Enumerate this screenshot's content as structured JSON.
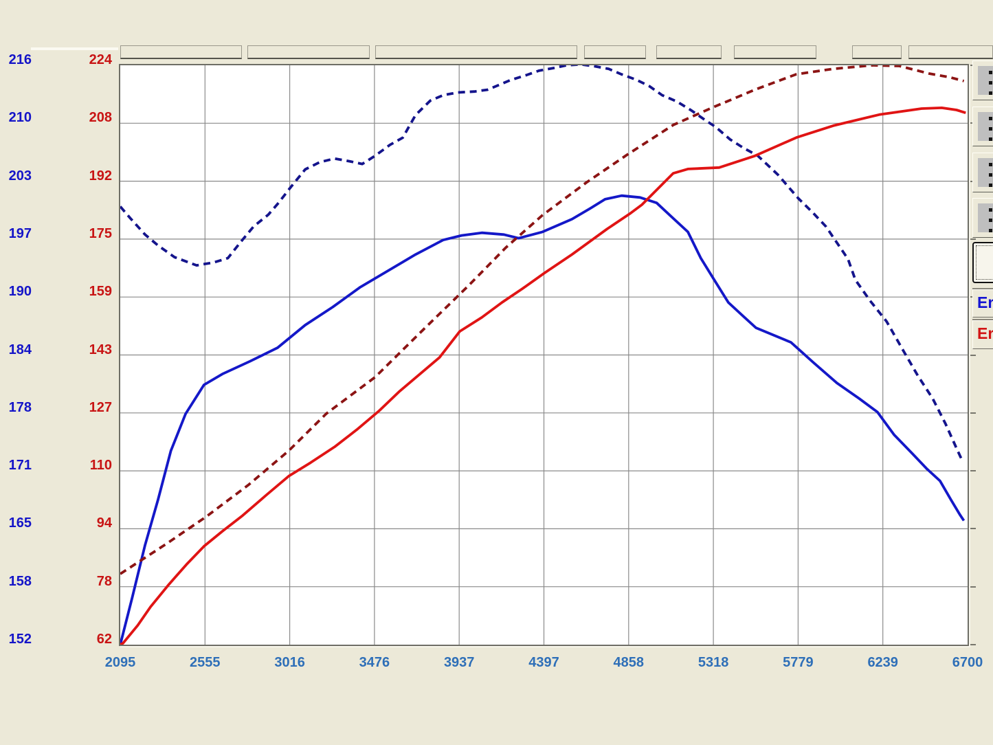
{
  "app": {
    "background": "#ece9d8"
  },
  "right_panel": {
    "icon_buttons": [
      {
        "icon": "mini-graph-icon"
      },
      {
        "icon": "mini-graph-icon"
      },
      {
        "icon": "mini-graph-icon"
      },
      {
        "icon": "mini-graph-icon"
      }
    ],
    "focused_button": {
      "state": "focused"
    },
    "error_buttons": [
      {
        "label": "Er",
        "color": "#1414d2"
      },
      {
        "label": "Er",
        "color": "#d21414"
      }
    ]
  },
  "chart_data": {
    "type": "line",
    "title": "",
    "xlabel": "",
    "ylabel_left_blue": "",
    "ylabel_left_red": "",
    "grid": true,
    "legend": "none",
    "x_axis": {
      "range": [
        2095,
        6700
      ],
      "ticks": [
        2095,
        2555,
        3016,
        3476,
        3937,
        4397,
        4858,
        5318,
        5779,
        6239,
        6700
      ],
      "tick_color": "#2e6fb8"
    },
    "y_axis_blue": {
      "range": [
        152,
        216
      ],
      "ticks_top_to_bottom": [
        216,
        210,
        203,
        197,
        190,
        184,
        178,
        171,
        165,
        158,
        152
      ],
      "tick_color": "#1414c8"
    },
    "y_axis_red": {
      "range": [
        62,
        224
      ],
      "ticks_top_to_bottom": [
        224,
        208,
        192,
        175,
        159,
        143,
        127,
        110,
        94,
        78,
        62
      ],
      "tick_color": "#c81414"
    },
    "series": [
      {
        "name": "dashed-blue",
        "axis": "blue",
        "style": "dashed",
        "color": "#14148c",
        "points": [
          [
            2095,
            200.4
          ],
          [
            2150,
            199.1
          ],
          [
            2230,
            197.3
          ],
          [
            2300,
            196.1
          ],
          [
            2390,
            194.8
          ],
          [
            2510,
            193.9
          ],
          [
            2600,
            194.2
          ],
          [
            2680,
            194.7
          ],
          [
            2750,
            196.5
          ],
          [
            2820,
            198.2
          ],
          [
            2900,
            199.5
          ],
          [
            2955,
            200.8
          ],
          [
            3020,
            202.5
          ],
          [
            3100,
            204.5
          ],
          [
            3180,
            205.3
          ],
          [
            3260,
            205.7
          ],
          [
            3340,
            205.4
          ],
          [
            3410,
            205.1
          ],
          [
            3480,
            206.0
          ],
          [
            3560,
            207.2
          ],
          [
            3630,
            208.0
          ],
          [
            3700,
            210.5
          ],
          [
            3780,
            212.1
          ],
          [
            3850,
            212.7
          ],
          [
            3930,
            213.0
          ],
          [
            4020,
            213.1
          ],
          [
            4090,
            213.3
          ],
          [
            4150,
            213.8
          ],
          [
            4220,
            214.4
          ],
          [
            4300,
            214.9
          ],
          [
            4370,
            215.4
          ],
          [
            4450,
            215.7
          ],
          [
            4520,
            216.0
          ],
          [
            4600,
            216.1
          ],
          [
            4670,
            215.9
          ],
          [
            4750,
            215.6
          ],
          [
            4820,
            215.0
          ],
          [
            4900,
            214.4
          ],
          [
            4970,
            213.7
          ],
          [
            5040,
            212.7
          ],
          [
            5120,
            212.0
          ],
          [
            5200,
            211.0
          ],
          [
            5270,
            210.0
          ],
          [
            5330,
            209.2
          ],
          [
            5410,
            207.8
          ],
          [
            5480,
            206.9
          ],
          [
            5560,
            206.0
          ],
          [
            5670,
            203.9
          ],
          [
            5780,
            201.3
          ],
          [
            5860,
            199.7
          ],
          [
            5930,
            198.2
          ],
          [
            6050,
            194.6
          ],
          [
            6090,
            192.3
          ],
          [
            6170,
            190.0
          ],
          [
            6260,
            187.7
          ],
          [
            6350,
            184.5
          ],
          [
            6430,
            181.7
          ],
          [
            6510,
            179.2
          ],
          [
            6580,
            176.4
          ],
          [
            6640,
            173.7
          ],
          [
            6665,
            172.6
          ]
        ]
      },
      {
        "name": "solid-blue",
        "axis": "blue",
        "style": "solid",
        "color": "#1418c8",
        "points": [
          [
            2095,
            152.0
          ],
          [
            2160,
            157.2
          ],
          [
            2230,
            163.0
          ],
          [
            2300,
            168.0
          ],
          [
            2370,
            173.4
          ],
          [
            2450,
            177.5
          ],
          [
            2550,
            180.7
          ],
          [
            2650,
            181.9
          ],
          [
            2800,
            183.3
          ],
          [
            2950,
            184.8
          ],
          [
            3100,
            187.3
          ],
          [
            3250,
            189.3
          ],
          [
            3400,
            191.5
          ],
          [
            3550,
            193.3
          ],
          [
            3700,
            195.1
          ],
          [
            3850,
            196.7
          ],
          [
            3950,
            197.2
          ],
          [
            4060,
            197.5
          ],
          [
            4180,
            197.3
          ],
          [
            4260,
            196.9
          ],
          [
            4390,
            197.6
          ],
          [
            4550,
            199.0
          ],
          [
            4650,
            200.2
          ],
          [
            4730,
            201.2
          ],
          [
            4820,
            201.6
          ],
          [
            4920,
            201.4
          ],
          [
            5010,
            200.8
          ],
          [
            5100,
            199.1
          ],
          [
            5180,
            197.6
          ],
          [
            5250,
            194.7
          ],
          [
            5320,
            192.4
          ],
          [
            5400,
            189.8
          ],
          [
            5480,
            188.3
          ],
          [
            5550,
            187.0
          ],
          [
            5740,
            185.4
          ],
          [
            5860,
            183.2
          ],
          [
            5990,
            180.9
          ],
          [
            6110,
            179.2
          ],
          [
            6210,
            177.7
          ],
          [
            6300,
            175.2
          ],
          [
            6400,
            173.1
          ],
          [
            6480,
            171.4
          ],
          [
            6550,
            170.1
          ],
          [
            6610,
            168.0
          ],
          [
            6660,
            166.3
          ],
          [
            6680,
            165.7
          ]
        ]
      },
      {
        "name": "dashed-maroon",
        "axis": "red",
        "style": "dashed",
        "color": "#8c1414",
        "points": [
          [
            2095,
            81.8
          ],
          [
            2340,
            90.0
          ],
          [
            2560,
            97.7
          ],
          [
            2790,
            106.6
          ],
          [
            3010,
            116.2
          ],
          [
            3215,
            126.6
          ],
          [
            3480,
            136.8
          ],
          [
            3740,
            150.0
          ],
          [
            3990,
            162.5
          ],
          [
            4190,
            173.0
          ],
          [
            4390,
            182.1
          ],
          [
            4630,
            191.3
          ],
          [
            4850,
            199.0
          ],
          [
            5100,
            207.3
          ],
          [
            5310,
            212.1
          ],
          [
            5550,
            217.3
          ],
          [
            5770,
            221.5
          ],
          [
            5970,
            223.0
          ],
          [
            6180,
            224.0
          ],
          [
            6330,
            223.8
          ],
          [
            6490,
            221.7
          ],
          [
            6600,
            220.7
          ],
          [
            6680,
            219.6
          ]
        ]
      },
      {
        "name": "solid-red",
        "axis": "red",
        "style": "solid",
        "color": "#e01414",
        "points": [
          [
            2095,
            62.0
          ],
          [
            2110,
            62.4
          ],
          [
            2190,
            67.4
          ],
          [
            2260,
            72.6
          ],
          [
            2360,
            78.9
          ],
          [
            2460,
            84.7
          ],
          [
            2550,
            89.5
          ],
          [
            2650,
            93.7
          ],
          [
            2760,
            98.1
          ],
          [
            2890,
            103.9
          ],
          [
            3010,
            109.1
          ],
          [
            3130,
            112.9
          ],
          [
            3260,
            117.3
          ],
          [
            3380,
            122.1
          ],
          [
            3500,
            127.3
          ],
          [
            3610,
            132.7
          ],
          [
            3720,
            137.5
          ],
          [
            3830,
            142.3
          ],
          [
            3940,
            149.6
          ],
          [
            4060,
            153.5
          ],
          [
            4170,
            157.7
          ],
          [
            4280,
            161.5
          ],
          [
            4400,
            165.9
          ],
          [
            4550,
            171.1
          ],
          [
            4740,
            178.2
          ],
          [
            4870,
            182.7
          ],
          [
            4930,
            185.0
          ],
          [
            5100,
            193.8
          ],
          [
            5180,
            195.0
          ],
          [
            5350,
            195.4
          ],
          [
            5540,
            198.6
          ],
          [
            5770,
            203.8
          ],
          [
            5970,
            207.1
          ],
          [
            6220,
            210.2
          ],
          [
            6450,
            211.9
          ],
          [
            6560,
            212.1
          ],
          [
            6640,
            211.5
          ],
          [
            6690,
            210.7
          ]
        ]
      }
    ]
  }
}
